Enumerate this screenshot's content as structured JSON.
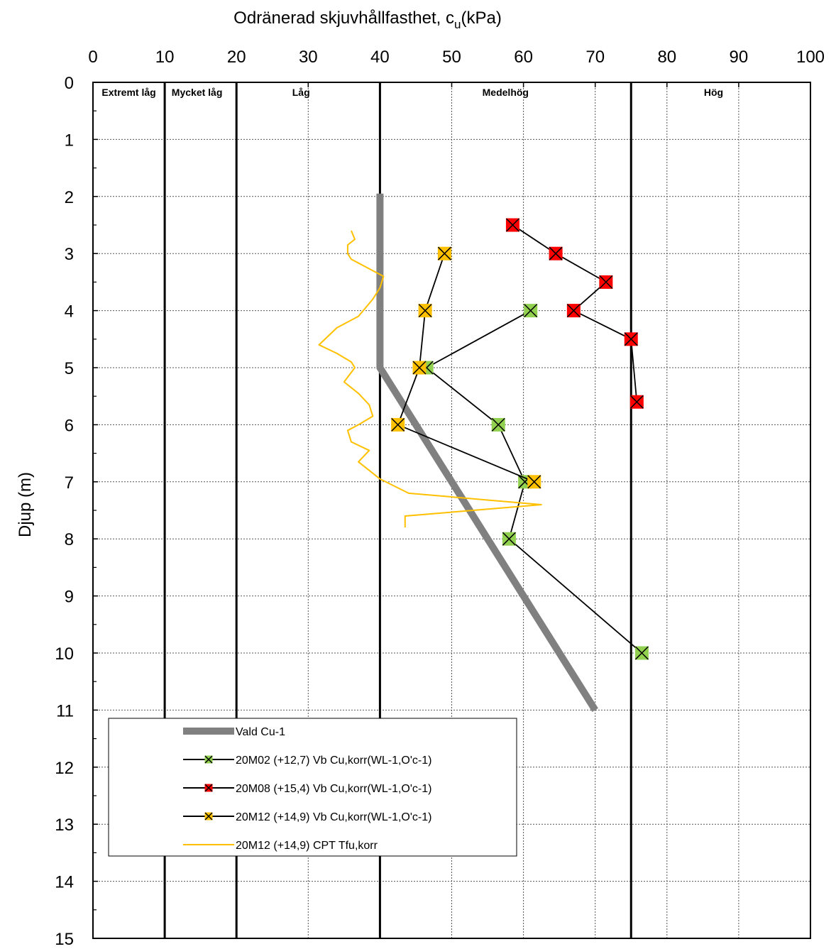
{
  "chart_data": {
    "type": "scatter",
    "title": "",
    "xlabel": "Odränerad skjuvhållfasthet, c",
    "xlabel_sub": "u",
    "xlabel_suffix": "(kPa)",
    "ylabel": "Djup (m)",
    "xlim": [
      0,
      100
    ],
    "ylim": [
      0,
      15
    ],
    "y_inverted": true,
    "x_axis_position": "top",
    "grid": true,
    "legend_position": "bottom-left",
    "x_ticks": [
      "0",
      "10",
      "20",
      "30",
      "40",
      "50",
      "60",
      "70",
      "80",
      "90",
      "100"
    ],
    "y_ticks": [
      "0",
      "1",
      "2",
      "3",
      "4",
      "5",
      "6",
      "7",
      "8",
      "9",
      "10",
      "11",
      "12",
      "13",
      "14",
      "15"
    ],
    "zone_boundaries": [
      10,
      20,
      40,
      75
    ],
    "zones": [
      {
        "label": "Extremt låg",
        "x": 5
      },
      {
        "label": "Mycket låg",
        "x": 14.5
      },
      {
        "label": "Låg",
        "x": 29
      },
      {
        "label": "Medelhög",
        "x": 57.5
      },
      {
        "label": "Hög",
        "x": 86.5
      }
    ],
    "series": [
      {
        "name": "Vald Cu-1",
        "style": "line",
        "color": "#808080",
        "points": [
          [
            40,
            1.95
          ],
          [
            40,
            5.0
          ],
          [
            70,
            11.0
          ]
        ]
      },
      {
        "name": "20M02 (+12,7) Vb Cu,korr(WL-1,O'c-1)",
        "style": "marker-line",
        "color": "#92D050",
        "points": [
          [
            61,
            4.0
          ],
          [
            46.5,
            5.0
          ],
          [
            56.5,
            6.0
          ],
          [
            60.2,
            7.0
          ],
          [
            58,
            8.0
          ],
          [
            76.5,
            10.0
          ]
        ]
      },
      {
        "name": "20M08 (+15,4) Vb Cu,korr(WL-1,O'c-1)",
        "style": "marker-line",
        "color": "#FF0000",
        "points": [
          [
            58.5,
            2.5
          ],
          [
            64.5,
            3.0
          ],
          [
            71.5,
            3.5
          ],
          [
            67,
            4.0
          ],
          [
            75,
            4.5
          ],
          [
            75.8,
            5.6
          ]
        ]
      },
      {
        "name": "20M12 (+14,9) Vb Cu,korr(WL-1,O'c-1)",
        "style": "marker-line",
        "color": "#FFC000",
        "points": [
          [
            49,
            3.0
          ],
          [
            46.3,
            4.0
          ],
          [
            45.5,
            5.0
          ],
          [
            42.5,
            6.0
          ],
          [
            61.5,
            7.0
          ]
        ]
      },
      {
        "name": "20M12 (+14,9) CPT Tfu,korr",
        "style": "line",
        "color": "#FFC000",
        "points": [
          [
            36,
            2.6
          ],
          [
            36.5,
            2.75
          ],
          [
            35.5,
            2.85
          ],
          [
            35.5,
            3.0
          ],
          [
            36,
            3.1
          ],
          [
            40.5,
            3.4
          ],
          [
            40,
            3.6
          ],
          [
            39,
            3.8
          ],
          [
            37,
            4.1
          ],
          [
            34,
            4.3
          ],
          [
            31.5,
            4.6
          ],
          [
            34,
            4.75
          ],
          [
            36,
            4.9
          ],
          [
            36.5,
            5.0
          ],
          [
            35,
            5.25
          ],
          [
            37,
            5.45
          ],
          [
            38.5,
            5.65
          ],
          [
            39,
            5.85
          ],
          [
            37,
            6.0
          ],
          [
            35.5,
            6.1
          ],
          [
            36,
            6.3
          ],
          [
            38.5,
            6.45
          ],
          [
            37,
            6.65
          ],
          [
            38.5,
            6.8
          ],
          [
            40,
            6.95
          ],
          [
            44,
            7.2
          ],
          [
            62.5,
            7.4
          ],
          [
            43.5,
            7.6
          ],
          [
            43.5,
            7.8
          ]
        ]
      }
    ]
  }
}
